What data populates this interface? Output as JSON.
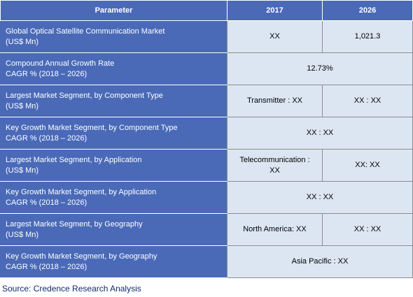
{
  "header": {
    "parameter": "Parameter",
    "y2017": "2017",
    "y2026": "2026"
  },
  "rows": [
    {
      "param_line1": "Global Optical Satellite Communication Market",
      "param_line2": "(US$ Mn)",
      "v2017": "XX",
      "v2026": "1,021.3"
    },
    {
      "param_line1": "Compound Annual Growth Rate",
      "param_line2": "CAGR % (2018 – 2026)",
      "merged": "12.73%"
    },
    {
      "param_line1": "Largest Market Segment, by Component Type",
      "param_line2": "(US$ Mn)",
      "v2017": "Transmitter : XX",
      "v2026": "XX : XX"
    },
    {
      "param_line1": "Key Growth Market Segment, by Component Type",
      "param_line2": "CAGR % (2018 – 2026)",
      "merged": "XX : XX"
    },
    {
      "param_line1": "Largest Market Segment, by Application",
      "param_line2": "(US$ Mn)",
      "v2017_line1": "Telecommunication :",
      "v2017_line2": "XX",
      "v2026": "XX: XX"
    },
    {
      "param_line1": "Key Growth Market Segment, by Application",
      "param_line2": "CAGR % (2018 – 2026)",
      "merged": "XX : XX"
    },
    {
      "param_line1": "Largest Market Segment, by Geography",
      "param_line2": "(US$ Mn)",
      "v2017": "North America: XX",
      "v2026": "XX : XX"
    },
    {
      "param_line1": "Key Growth Market Segment, by Geography",
      "param_line2": "CAGR % (2018 – 2026)",
      "merged": "Asia Pacific : XX"
    }
  ],
  "source": "Source: Credence Research Analysis",
  "colors": {
    "header_bg": "#4a6ab8",
    "value_bg": "#dce6f3",
    "source_text": "#0e2a6e"
  }
}
